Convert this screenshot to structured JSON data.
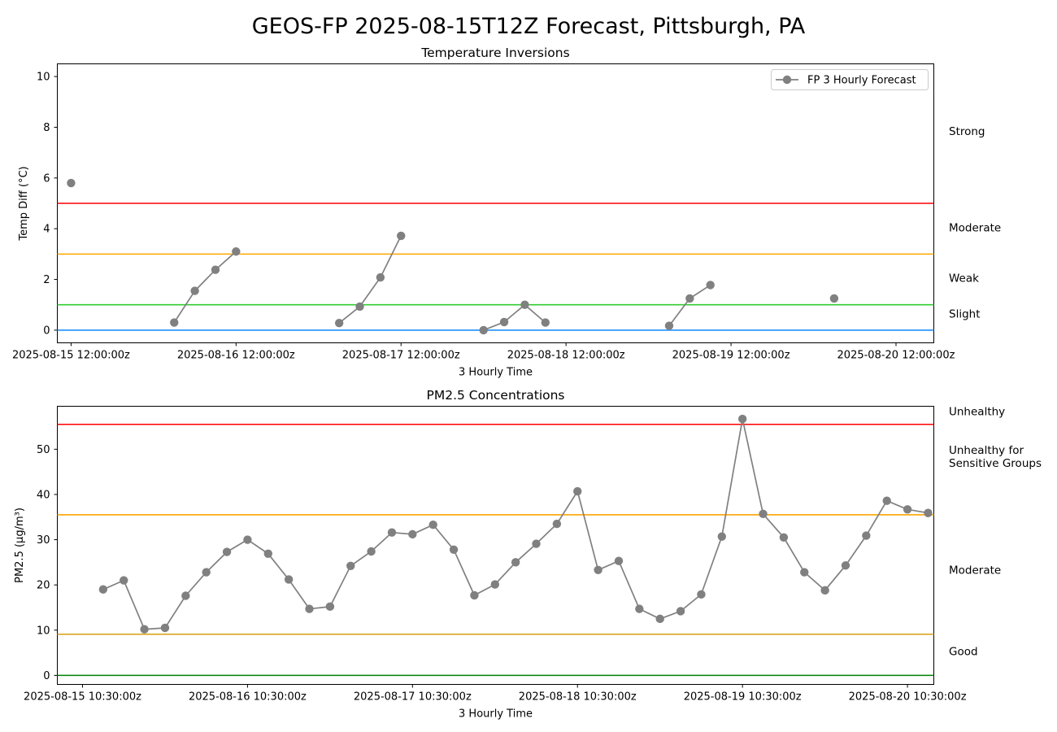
{
  "figure_title": "GEOS-FP 2025-08-15T12Z Forecast, Pittsburgh, PA",
  "chart_data": [
    {
      "type": "line",
      "title": "Temperature Inversions",
      "xlabel": "3 Hourly Time",
      "ylabel": "Temp Diff (°C)",
      "ylim": [
        -0.5,
        10.5
      ],
      "yticks": [
        0,
        2,
        4,
        6,
        8,
        10
      ],
      "xticks": [
        "2025-08-15 12:00:00z",
        "2025-08-16 12:00:00z",
        "2025-08-17 12:00:00z",
        "2025-08-18 12:00:00z",
        "2025-08-19 12:00:00z",
        "2025-08-20 12:00:00z"
      ],
      "legend": {
        "placement": "top-right",
        "entries": [
          "FP 3 Hourly Forecast"
        ]
      },
      "thresholds": [
        {
          "value": 5,
          "label": "Strong",
          "color": "#ff0000",
          "label_y": 7.7
        },
        {
          "value": 3,
          "label": "Moderate",
          "color": "#ffa500",
          "label_y": 3.9
        },
        {
          "value": 1,
          "label": "Weak",
          "color": "#32cd32",
          "label_y": 1.9
        },
        {
          "value": 0,
          "label": "Slight",
          "color": "#1e90ff",
          "label_y": 0.5
        }
      ],
      "series": [
        {
          "name": "FP 3 Hourly Forecast",
          "color": "#808080",
          "points": [
            {
              "x": "2025-08-15 12:00:00z",
              "y": 5.8
            },
            {
              "x": "2025-08-16 03:00:00z",
              "y": 0.3
            },
            {
              "x": "2025-08-16 06:00:00z",
              "y": 1.55
            },
            {
              "x": "2025-08-16 09:00:00z",
              "y": 2.38
            },
            {
              "x": "2025-08-16 12:00:00z",
              "y": 3.1
            },
            {
              "x": "2025-08-17 03:00:00z",
              "y": 0.28
            },
            {
              "x": "2025-08-17 06:00:00z",
              "y": 0.93
            },
            {
              "x": "2025-08-17 09:00:00z",
              "y": 2.08
            },
            {
              "x": "2025-08-17 12:00:00z",
              "y": 3.72
            },
            {
              "x": "2025-08-18 00:00:00z",
              "y": 0.0
            },
            {
              "x": "2025-08-18 03:00:00z",
              "y": 0.32
            },
            {
              "x": "2025-08-18 06:00:00z",
              "y": 1.0
            },
            {
              "x": "2025-08-18 09:00:00z",
              "y": 0.3
            },
            {
              "x": "2025-08-19 03:00:00z",
              "y": 0.17
            },
            {
              "x": "2025-08-19 06:00:00z",
              "y": 1.25
            },
            {
              "x": "2025-08-19 09:00:00z",
              "y": 1.78
            },
            {
              "x": "2025-08-20 03:00:00z",
              "y": 1.25
            }
          ]
        }
      ]
    },
    {
      "type": "line",
      "title": "PM2.5 Concentrations",
      "xlabel": "3 Hourly Time",
      "ylabel": "PM2.5 (μg/m³)",
      "ylim": [
        -2,
        59.5
      ],
      "yticks": [
        0,
        10,
        20,
        30,
        40,
        50
      ],
      "xticks": [
        "2025-08-15 10:30:00z",
        "2025-08-16 10:30:00z",
        "2025-08-17 10:30:00z",
        "2025-08-18 10:30:00z",
        "2025-08-19 10:30:00z",
        "2025-08-20 10:30:00z"
      ],
      "thresholds": [
        {
          "value": 55.5,
          "label": "Unhealthy",
          "color": "#ff0000",
          "label_y": 57.5
        },
        {
          "value": 35.5,
          "label": "Unhealthy for Sensitive Groups",
          "color": "#ffa500",
          "label_y": 47.5
        },
        {
          "value": 9.1,
          "label": "Moderate",
          "color": "#daa520",
          "label_y": 22.5
        },
        {
          "value": 0,
          "label": "Good",
          "color": "#008000",
          "label_y": 4.5
        }
      ],
      "series": [
        {
          "name": "",
          "color": "#808080",
          "start": "2025-08-15 13:30:00z",
          "step_hours": 3,
          "values": [
            19.0,
            21.0,
            10.2,
            10.5,
            17.6,
            22.8,
            27.3,
            30.0,
            26.9,
            21.2,
            14.7,
            15.2,
            24.2,
            27.4,
            31.6,
            31.2,
            33.3,
            27.8,
            17.7,
            20.1,
            25.0,
            29.1,
            33.5,
            40.7,
            23.3,
            25.3,
            14.7,
            12.5,
            14.2,
            17.9,
            30.7,
            56.7,
            35.7,
            30.5,
            22.8,
            18.8,
            24.3,
            30.9,
            38.6,
            36.7,
            35.9
          ]
        }
      ]
    }
  ]
}
